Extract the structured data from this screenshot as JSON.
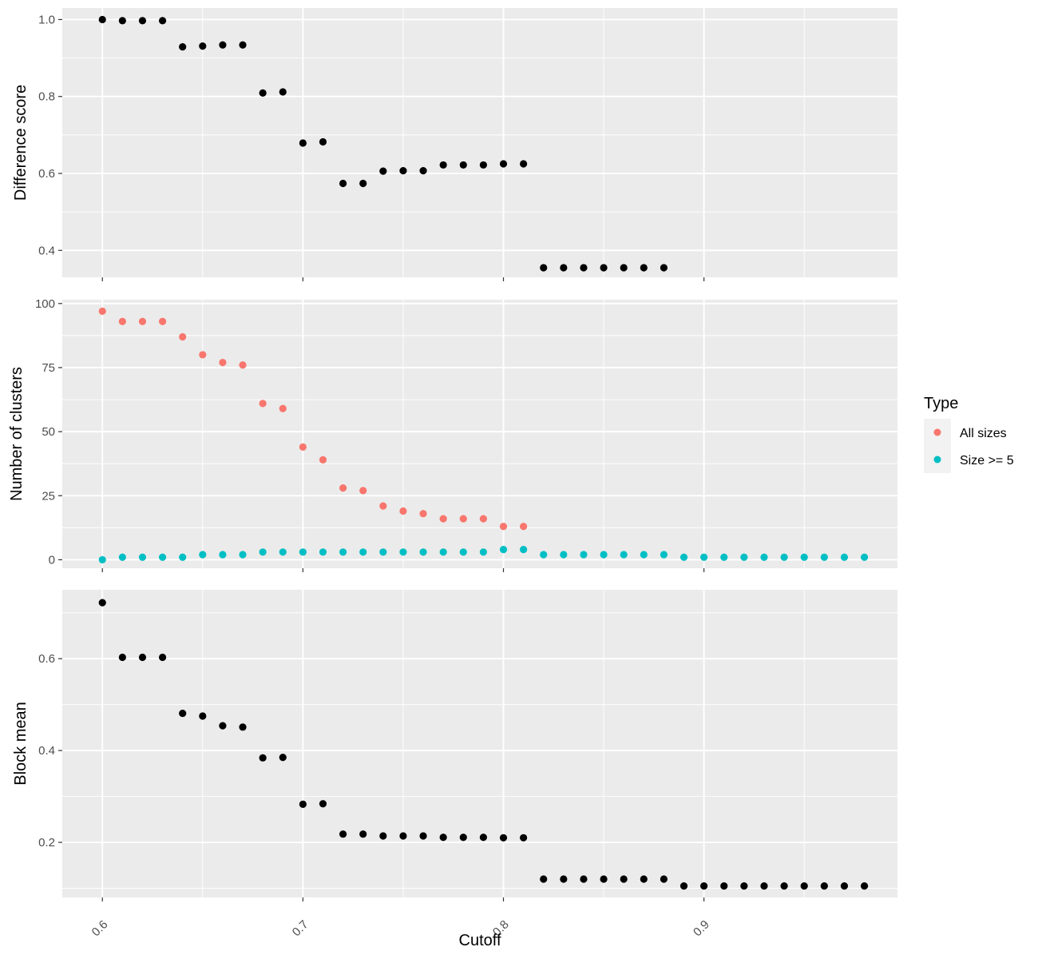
{
  "chart_data": [
    {
      "type": "scatter",
      "title": "",
      "xlabel": "Cutoff",
      "ylabel": "Difference score",
      "xlim": [
        0.58,
        0.9965
      ],
      "ylim": [
        0.33,
        1.03
      ],
      "y_ticks": [
        {
          "value": 0.4,
          "label": "0.4"
        },
        {
          "value": 0.6,
          "label": "0.6"
        },
        {
          "value": 0.8,
          "label": "0.8"
        },
        {
          "value": 1.0,
          "label": "1.0"
        }
      ],
      "series": [
        {
          "color": "#000000",
          "x": [
            0.6,
            0.61,
            0.62,
            0.63,
            0.64,
            0.65,
            0.66,
            0.67,
            0.68,
            0.69,
            0.7,
            0.71,
            0.72,
            0.73,
            0.74,
            0.75,
            0.76,
            0.77,
            0.78,
            0.79,
            0.8,
            0.81,
            0.82,
            0.83,
            0.84,
            0.85,
            0.86,
            0.87,
            0.88
          ],
          "y": [
            1.0,
            0.997,
            0.997,
            0.997,
            0.929,
            0.931,
            0.934,
            0.934,
            0.809,
            0.812,
            0.679,
            0.682,
            0.574,
            0.574,
            0.606,
            0.607,
            0.607,
            0.622,
            0.622,
            0.622,
            0.625,
            0.625,
            0.355,
            0.355,
            0.355,
            0.355,
            0.355,
            0.355,
            0.355
          ]
        }
      ]
    },
    {
      "type": "scatter",
      "title": "",
      "xlabel": "Cutoff",
      "ylabel": "Number of clusters",
      "xlim": [
        0.58,
        0.9965
      ],
      "ylim": [
        -3.3,
        101.5
      ],
      "y_ticks": [
        {
          "value": 0,
          "label": "0"
        },
        {
          "value": 25,
          "label": "25"
        },
        {
          "value": 50,
          "label": "50"
        },
        {
          "value": 75,
          "label": "75"
        },
        {
          "value": 100,
          "label": "100"
        }
      ],
      "legend": {
        "title": "Type",
        "position": "right"
      },
      "series": [
        {
          "name": "All sizes",
          "color": "#f8766d",
          "x": [
            0.6,
            0.61,
            0.62,
            0.63,
            0.64,
            0.65,
            0.66,
            0.67,
            0.68,
            0.69,
            0.7,
            0.71,
            0.72,
            0.73,
            0.74,
            0.75,
            0.76,
            0.77,
            0.78,
            0.79,
            0.8,
            0.81
          ],
          "y": [
            97,
            93,
            93,
            93,
            87,
            80,
            77,
            76,
            61,
            59,
            44,
            39,
            28,
            27,
            21,
            19,
            18,
            16,
            16,
            16,
            13,
            13
          ]
        },
        {
          "name": "Size >= 5",
          "color": "#00bfc4",
          "x": [
            0.6,
            0.61,
            0.62,
            0.63,
            0.64,
            0.65,
            0.66,
            0.67,
            0.68,
            0.69,
            0.7,
            0.71,
            0.72,
            0.73,
            0.74,
            0.75,
            0.76,
            0.77,
            0.78,
            0.79,
            0.8,
            0.81,
            0.82,
            0.83,
            0.84,
            0.85,
            0.86,
            0.87,
            0.88,
            0.89,
            0.9,
            0.91,
            0.92,
            0.93,
            0.94,
            0.95,
            0.96,
            0.97,
            0.98
          ],
          "y": [
            0,
            1,
            1,
            1,
            1,
            2,
            2,
            2,
            3,
            3,
            3,
            3,
            3,
            3,
            3,
            3,
            3,
            3,
            3,
            3,
            4,
            4,
            2,
            2,
            2,
            2,
            2,
            2,
            2,
            1,
            1,
            1,
            1,
            1,
            1,
            1,
            1,
            1,
            1
          ]
        }
      ]
    },
    {
      "type": "scatter",
      "title": "",
      "xlabel": "Cutoff",
      "ylabel": "Block mean",
      "xlim": [
        0.58,
        0.9965
      ],
      "ylim": [
        0.08,
        0.75
      ],
      "y_ticks": [
        {
          "value": 0.2,
          "label": "0.2"
        },
        {
          "value": 0.4,
          "label": "0.4"
        },
        {
          "value": 0.6,
          "label": "0.6"
        }
      ],
      "series": [
        {
          "color": "#000000",
          "x": [
            0.6,
            0.61,
            0.62,
            0.63,
            0.64,
            0.65,
            0.66,
            0.67,
            0.68,
            0.69,
            0.7,
            0.71,
            0.72,
            0.73,
            0.74,
            0.75,
            0.76,
            0.77,
            0.78,
            0.79,
            0.8,
            0.81,
            0.82,
            0.83,
            0.84,
            0.85,
            0.86,
            0.87,
            0.88,
            0.89,
            0.9,
            0.91,
            0.92,
            0.93,
            0.94,
            0.95,
            0.96,
            0.97,
            0.98
          ],
          "y": [
            0.722,
            0.603,
            0.603,
            0.603,
            0.481,
            0.475,
            0.454,
            0.451,
            0.384,
            0.385,
            0.283,
            0.284,
            0.218,
            0.218,
            0.214,
            0.214,
            0.214,
            0.211,
            0.211,
            0.211,
            0.21,
            0.21,
            0.12,
            0.12,
            0.12,
            0.12,
            0.12,
            0.12,
            0.12,
            0.105,
            0.105,
            0.105,
            0.105,
            0.105,
            0.105,
            0.105,
            0.105,
            0.105,
            0.105
          ]
        }
      ]
    }
  ],
  "shared_x": {
    "label": "Cutoff",
    "ticks": [
      {
        "value": 0.6,
        "label": "0.6"
      },
      {
        "value": 0.7,
        "label": "0.7"
      },
      {
        "value": 0.8,
        "label": "0.8"
      },
      {
        "value": 0.9,
        "label": "0.9"
      }
    ],
    "minor_ticks": [
      0.65,
      0.75,
      0.85,
      0.95
    ]
  },
  "colors": {
    "panel_background": "#ebebeb",
    "grid": "#ffffff",
    "all_sizes": "#f8766d",
    "size_ge_5": "#00bfc4",
    "points": "#000000"
  }
}
